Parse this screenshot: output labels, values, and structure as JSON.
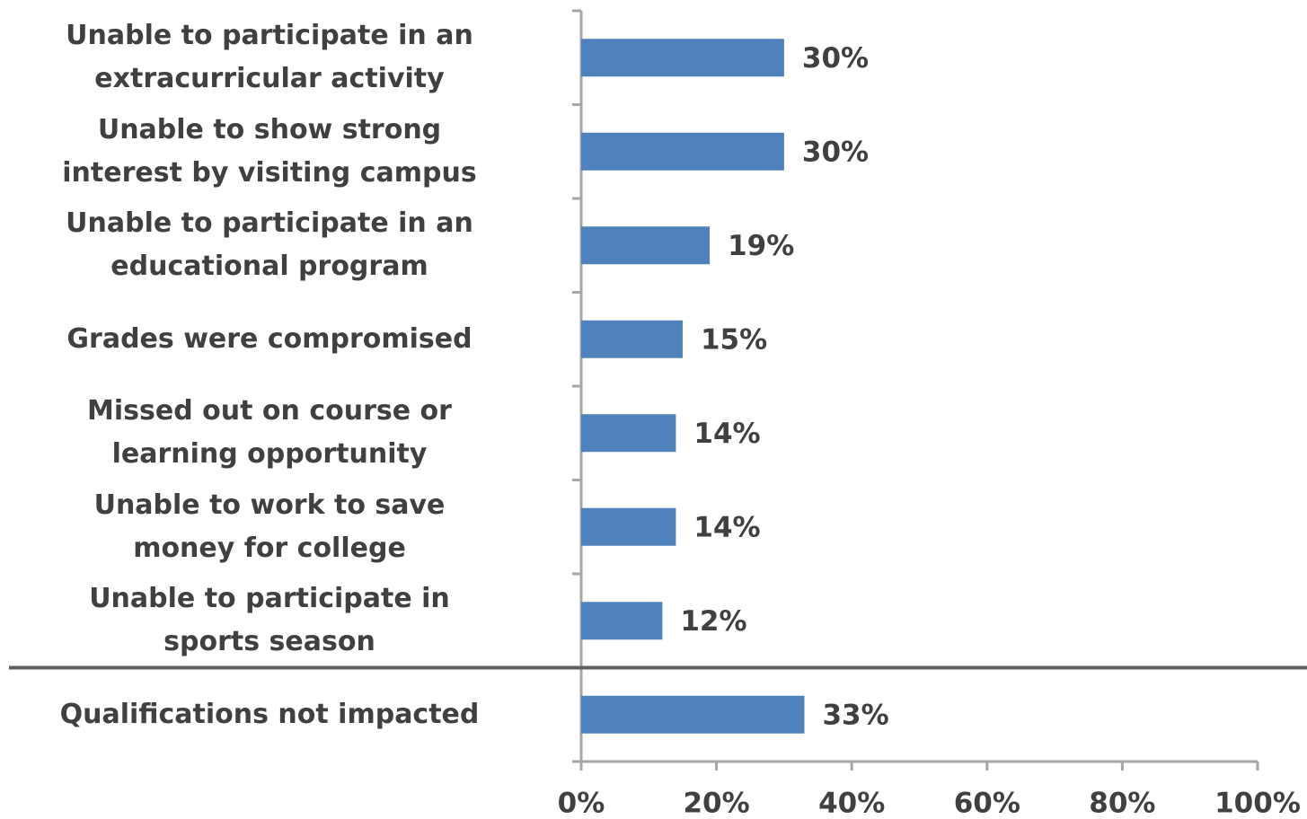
{
  "chart_data": {
    "type": "barh",
    "categories": [
      "Unable to participate in an\nextracurricular activity",
      "Unable to show strong\ninterest by visiting campus",
      "Unable to participate in an\neducational program",
      "Grades were compromised",
      "Missed out on course or\nlearning opportunity",
      "Unable to work to save\nmoney for college",
      "Unable to participate in\nsports season",
      "Qualifications not impacted"
    ],
    "values": [
      30,
      30,
      19,
      15,
      14,
      14,
      12,
      33
    ],
    "value_labels": [
      "30%",
      "30%",
      "19%",
      "15%",
      "14%",
      "14%",
      "12%",
      "33%"
    ],
    "color": "#4f81bd",
    "xlim": [
      0,
      100
    ],
    "xticks": [
      {
        "value": 0,
        "label": "0%"
      },
      {
        "value": 20,
        "label": "20%"
      },
      {
        "value": 40,
        "label": "40%"
      },
      {
        "value": 60,
        "label": "60%"
      },
      {
        "value": 80,
        "label": "80%"
      },
      {
        "value": 100,
        "label": "100%"
      }
    ]
  }
}
